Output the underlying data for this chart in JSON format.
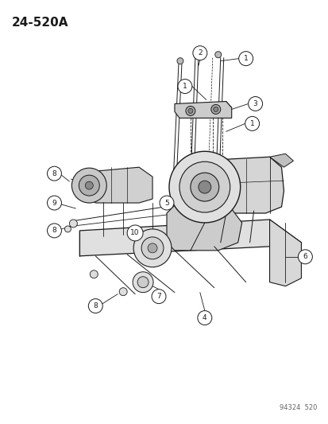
{
  "title": "24-520A",
  "catalog_number": "94324  520",
  "bg": "#ffffff",
  "lc": "#1a1a1a",
  "fig_width": 4.14,
  "fig_height": 5.33,
  "dpi": 100
}
